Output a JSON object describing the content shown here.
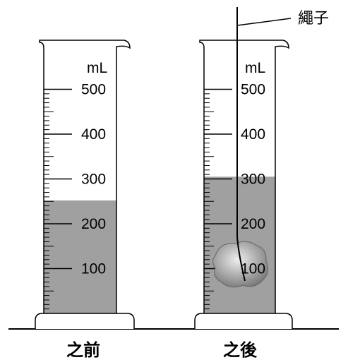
{
  "unit_label": "mL",
  "scale_labels": [
    "100",
    "200",
    "300",
    "400",
    "500"
  ],
  "scale_values": [
    100,
    200,
    300,
    400,
    500
  ],
  "cylinders": [
    {
      "caption": "之前",
      "water_level_ml": 252
    },
    {
      "caption": "之後",
      "water_level_ml": 305
    }
  ],
  "rope_label": "繩子",
  "colors": {
    "water": "#a0a0a0",
    "outline": "#000000",
    "rock_light": "#eeeeee",
    "rock_dark": "#777777"
  }
}
